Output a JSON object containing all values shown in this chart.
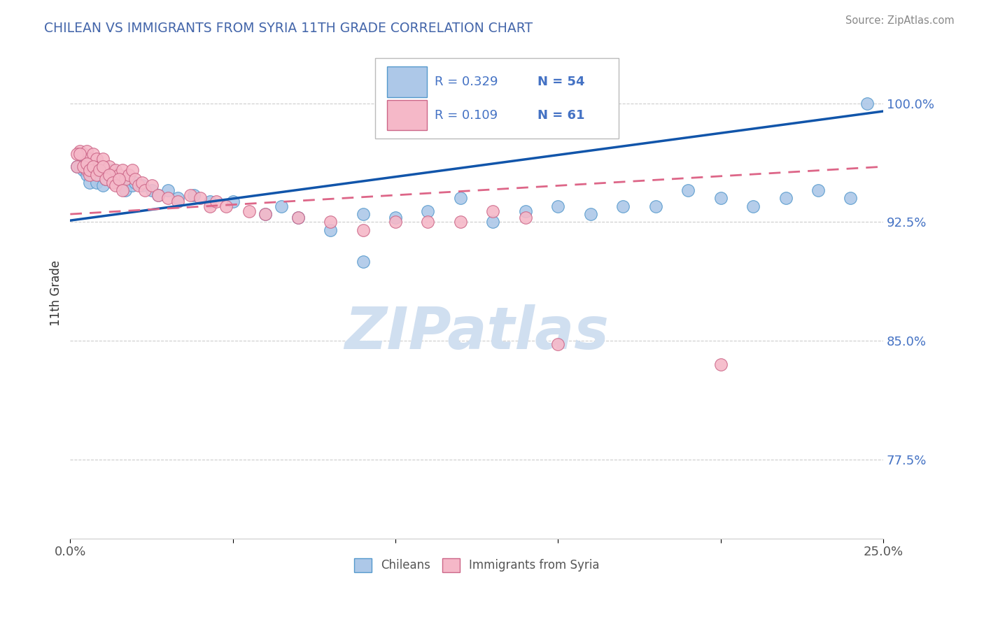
{
  "title": "CHILEAN VS IMMIGRANTS FROM SYRIA 11TH GRADE CORRELATION CHART",
  "source": "Source: ZipAtlas.com",
  "ylabel": "11th Grade",
  "xlim": [
    0.0,
    0.25
  ],
  "ylim": [
    0.725,
    1.035
  ],
  "xtick_positions": [
    0.0,
    0.05,
    0.1,
    0.15,
    0.2,
    0.25
  ],
  "xticklabels": [
    "0.0%",
    "",
    "",
    "",
    "",
    "25.0%"
  ],
  "ytick_positions": [
    0.775,
    0.85,
    0.925,
    1.0
  ],
  "yticklabels": [
    "77.5%",
    "85.0%",
    "92.5%",
    "100.0%"
  ],
  "chilean_color": "#adc8e8",
  "chilean_edge": "#5599cc",
  "syria_color": "#f5b8c8",
  "syria_edge": "#cc6688",
  "trendline_chilean_color": "#1155aa",
  "trendline_syria_color": "#dd6688",
  "R_chilean": 0.329,
  "N_chilean": 54,
  "R_syria": 0.109,
  "N_syria": 61,
  "background_color": "#ffffff",
  "legend_chileans": "Chileans",
  "legend_syria": "Immigrants from Syria",
  "title_color": "#4466aa",
  "ytick_color": "#4472c4",
  "xtick_color": "#555555",
  "ylabel_color": "#333333",
  "source_color": "#888888",
  "grid_color": "#cccccc",
  "watermark_color": "#d0dff0",
  "trendline_blue_x0": 0.0,
  "trendline_blue_y0": 0.926,
  "trendline_blue_x1": 0.25,
  "trendline_blue_y1": 0.995,
  "trendline_pink_x0": 0.0,
  "trendline_pink_y0": 0.93,
  "trendline_pink_x1": 0.25,
  "trendline_pink_y1": 0.96,
  "chilean_x": [
    0.002,
    0.003,
    0.004,
    0.005,
    0.005,
    0.006,
    0.007,
    0.008,
    0.008,
    0.009,
    0.01,
    0.011,
    0.012,
    0.013,
    0.014,
    0.015,
    0.016,
    0.017,
    0.018,
    0.019,
    0.02,
    0.022,
    0.025,
    0.027,
    0.03,
    0.033,
    0.038,
    0.043,
    0.05,
    0.06,
    0.065,
    0.07,
    0.08,
    0.09,
    0.1,
    0.11,
    0.12,
    0.13,
    0.14,
    0.15,
    0.16,
    0.17,
    0.18,
    0.19,
    0.2,
    0.21,
    0.22,
    0.23,
    0.24,
    0.245,
    0.006,
    0.009,
    0.012,
    0.09
  ],
  "chilean_y": [
    0.96,
    0.96,
    0.958,
    0.955,
    0.965,
    0.95,
    0.96,
    0.958,
    0.95,
    0.955,
    0.948,
    0.952,
    0.955,
    0.958,
    0.952,
    0.95,
    0.948,
    0.945,
    0.952,
    0.948,
    0.95,
    0.948,
    0.945,
    0.942,
    0.945,
    0.94,
    0.942,
    0.938,
    0.938,
    0.93,
    0.935,
    0.928,
    0.92,
    0.93,
    0.928,
    0.932,
    0.94,
    0.925,
    0.932,
    0.935,
    0.93,
    0.935,
    0.935,
    0.945,
    0.94,
    0.935,
    0.94,
    0.945,
    0.94,
    1.0,
    0.965,
    0.96,
    0.955,
    0.9
  ],
  "syria_x": [
    0.002,
    0.003,
    0.004,
    0.005,
    0.005,
    0.006,
    0.006,
    0.007,
    0.008,
    0.008,
    0.009,
    0.01,
    0.011,
    0.012,
    0.013,
    0.014,
    0.015,
    0.016,
    0.017,
    0.018,
    0.019,
    0.02,
    0.021,
    0.022,
    0.023,
    0.025,
    0.027,
    0.03,
    0.033,
    0.037,
    0.04,
    0.043,
    0.045,
    0.048,
    0.055,
    0.06,
    0.07,
    0.08,
    0.09,
    0.1,
    0.11,
    0.12,
    0.13,
    0.14,
    0.002,
    0.003,
    0.004,
    0.005,
    0.006,
    0.007,
    0.008,
    0.009,
    0.01,
    0.011,
    0.012,
    0.013,
    0.014,
    0.015,
    0.016,
    0.15,
    0.2
  ],
  "syria_y": [
    0.96,
    0.97,
    0.968,
    0.97,
    0.958,
    0.965,
    0.955,
    0.968,
    0.965,
    0.958,
    0.96,
    0.965,
    0.958,
    0.96,
    0.955,
    0.958,
    0.955,
    0.958,
    0.952,
    0.955,
    0.958,
    0.952,
    0.948,
    0.95,
    0.945,
    0.948,
    0.942,
    0.94,
    0.938,
    0.942,
    0.94,
    0.935,
    0.938,
    0.935,
    0.932,
    0.93,
    0.928,
    0.925,
    0.92,
    0.925,
    0.925,
    0.925,
    0.932,
    0.928,
    0.968,
    0.968,
    0.96,
    0.962,
    0.958,
    0.96,
    0.955,
    0.958,
    0.96,
    0.952,
    0.955,
    0.95,
    0.948,
    0.952,
    0.945,
    0.848,
    0.835
  ]
}
